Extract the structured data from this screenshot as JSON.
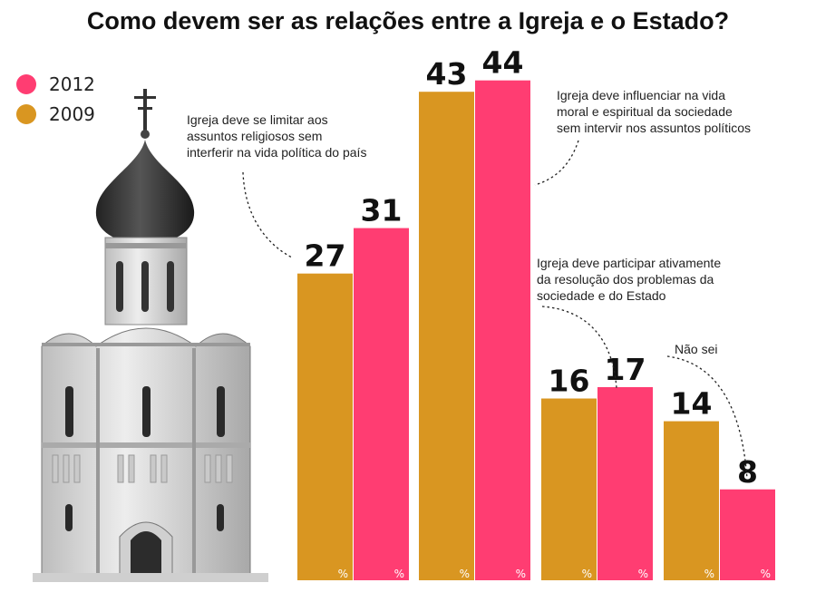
{
  "chart_data": {
    "type": "bar",
    "title": "Como devem ser as relações entre a Igreja e o Estado?",
    "categories": [
      "Igreja deve se limitar aos assuntos religiosos sem interferir na vida política do país",
      "Igreja deve influenciar na vida moral e espiritual da sociedade sem intervir nos assuntos políticos",
      "Igreja deve participar ativamente da resolução dos problemas da sociedade e do Estado",
      "Não sei"
    ],
    "series": [
      {
        "name": "2009",
        "color": "#D99621",
        "values": [
          27,
          43,
          16,
          14
        ]
      },
      {
        "name": "2012",
        "color": "#FF3D72",
        "values": [
          31,
          44,
          17,
          8
        ]
      }
    ],
    "unit_symbol": "%",
    "ylim": [
      0,
      50
    ],
    "legend": [
      "2012",
      "2009"
    ],
    "legend_placement": "top-left"
  },
  "annotations": [
    "Igreja deve se limitar aos\nassuntos religiosos sem\ninterferir na vida política do país",
    "Igreja deve influenciar na vida\nmoral e espiritual da sociedade\nsem intervir nos assuntos políticos",
    "Igreja deve participar ativamente\nda resolução dos problemas da\nsociedade e do Estado",
    "Não sei"
  ],
  "icons": {
    "illustration": "orthodox-church-illustration"
  }
}
